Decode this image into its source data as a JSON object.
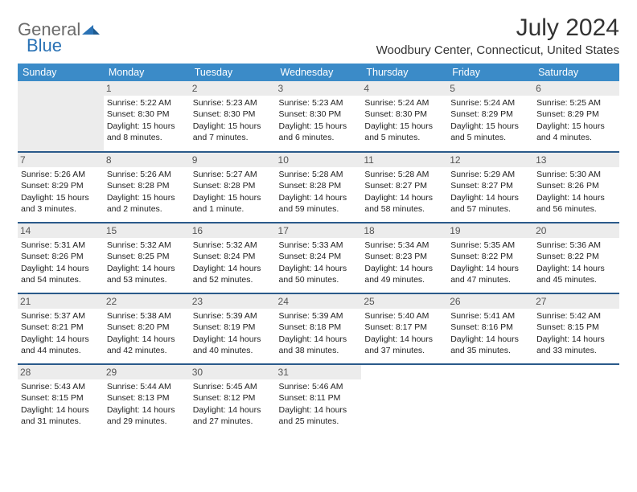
{
  "logo": {
    "text_general": "General",
    "text_blue": "Blue",
    "arrow_color": "#2a72b5"
  },
  "title": {
    "month_year": "July 2024",
    "location": "Woodbury Center, Connecticut, United States"
  },
  "colors": {
    "header_bg": "#3b8bc8",
    "header_fg": "#ffffff",
    "row_divider": "#2a5a8a",
    "daynum_bg": "#ececec",
    "body_text": "#222222"
  },
  "weekdays": [
    "Sunday",
    "Monday",
    "Tuesday",
    "Wednesday",
    "Thursday",
    "Friday",
    "Saturday"
  ],
  "weeks": [
    [
      null,
      {
        "d": "1",
        "sr": "Sunrise: 5:22 AM",
        "ss": "Sunset: 8:30 PM",
        "dl1": "Daylight: 15 hours",
        "dl2": "and 8 minutes."
      },
      {
        "d": "2",
        "sr": "Sunrise: 5:23 AM",
        "ss": "Sunset: 8:30 PM",
        "dl1": "Daylight: 15 hours",
        "dl2": "and 7 minutes."
      },
      {
        "d": "3",
        "sr": "Sunrise: 5:23 AM",
        "ss": "Sunset: 8:30 PM",
        "dl1": "Daylight: 15 hours",
        "dl2": "and 6 minutes."
      },
      {
        "d": "4",
        "sr": "Sunrise: 5:24 AM",
        "ss": "Sunset: 8:30 PM",
        "dl1": "Daylight: 15 hours",
        "dl2": "and 5 minutes."
      },
      {
        "d": "5",
        "sr": "Sunrise: 5:24 AM",
        "ss": "Sunset: 8:29 PM",
        "dl1": "Daylight: 15 hours",
        "dl2": "and 5 minutes."
      },
      {
        "d": "6",
        "sr": "Sunrise: 5:25 AM",
        "ss": "Sunset: 8:29 PM",
        "dl1": "Daylight: 15 hours",
        "dl2": "and 4 minutes."
      }
    ],
    [
      {
        "d": "7",
        "sr": "Sunrise: 5:26 AM",
        "ss": "Sunset: 8:29 PM",
        "dl1": "Daylight: 15 hours",
        "dl2": "and 3 minutes."
      },
      {
        "d": "8",
        "sr": "Sunrise: 5:26 AM",
        "ss": "Sunset: 8:28 PM",
        "dl1": "Daylight: 15 hours",
        "dl2": "and 2 minutes."
      },
      {
        "d": "9",
        "sr": "Sunrise: 5:27 AM",
        "ss": "Sunset: 8:28 PM",
        "dl1": "Daylight: 15 hours",
        "dl2": "and 1 minute."
      },
      {
        "d": "10",
        "sr": "Sunrise: 5:28 AM",
        "ss": "Sunset: 8:28 PM",
        "dl1": "Daylight: 14 hours",
        "dl2": "and 59 minutes."
      },
      {
        "d": "11",
        "sr": "Sunrise: 5:28 AM",
        "ss": "Sunset: 8:27 PM",
        "dl1": "Daylight: 14 hours",
        "dl2": "and 58 minutes."
      },
      {
        "d": "12",
        "sr": "Sunrise: 5:29 AM",
        "ss": "Sunset: 8:27 PM",
        "dl1": "Daylight: 14 hours",
        "dl2": "and 57 minutes."
      },
      {
        "d": "13",
        "sr": "Sunrise: 5:30 AM",
        "ss": "Sunset: 8:26 PM",
        "dl1": "Daylight: 14 hours",
        "dl2": "and 56 minutes."
      }
    ],
    [
      {
        "d": "14",
        "sr": "Sunrise: 5:31 AM",
        "ss": "Sunset: 8:26 PM",
        "dl1": "Daylight: 14 hours",
        "dl2": "and 54 minutes."
      },
      {
        "d": "15",
        "sr": "Sunrise: 5:32 AM",
        "ss": "Sunset: 8:25 PM",
        "dl1": "Daylight: 14 hours",
        "dl2": "and 53 minutes."
      },
      {
        "d": "16",
        "sr": "Sunrise: 5:32 AM",
        "ss": "Sunset: 8:24 PM",
        "dl1": "Daylight: 14 hours",
        "dl2": "and 52 minutes."
      },
      {
        "d": "17",
        "sr": "Sunrise: 5:33 AM",
        "ss": "Sunset: 8:24 PM",
        "dl1": "Daylight: 14 hours",
        "dl2": "and 50 minutes."
      },
      {
        "d": "18",
        "sr": "Sunrise: 5:34 AM",
        "ss": "Sunset: 8:23 PM",
        "dl1": "Daylight: 14 hours",
        "dl2": "and 49 minutes."
      },
      {
        "d": "19",
        "sr": "Sunrise: 5:35 AM",
        "ss": "Sunset: 8:22 PM",
        "dl1": "Daylight: 14 hours",
        "dl2": "and 47 minutes."
      },
      {
        "d": "20",
        "sr": "Sunrise: 5:36 AM",
        "ss": "Sunset: 8:22 PM",
        "dl1": "Daylight: 14 hours",
        "dl2": "and 45 minutes."
      }
    ],
    [
      {
        "d": "21",
        "sr": "Sunrise: 5:37 AM",
        "ss": "Sunset: 8:21 PM",
        "dl1": "Daylight: 14 hours",
        "dl2": "and 44 minutes."
      },
      {
        "d": "22",
        "sr": "Sunrise: 5:38 AM",
        "ss": "Sunset: 8:20 PM",
        "dl1": "Daylight: 14 hours",
        "dl2": "and 42 minutes."
      },
      {
        "d": "23",
        "sr": "Sunrise: 5:39 AM",
        "ss": "Sunset: 8:19 PM",
        "dl1": "Daylight: 14 hours",
        "dl2": "and 40 minutes."
      },
      {
        "d": "24",
        "sr": "Sunrise: 5:39 AM",
        "ss": "Sunset: 8:18 PM",
        "dl1": "Daylight: 14 hours",
        "dl2": "and 38 minutes."
      },
      {
        "d": "25",
        "sr": "Sunrise: 5:40 AM",
        "ss": "Sunset: 8:17 PM",
        "dl1": "Daylight: 14 hours",
        "dl2": "and 37 minutes."
      },
      {
        "d": "26",
        "sr": "Sunrise: 5:41 AM",
        "ss": "Sunset: 8:16 PM",
        "dl1": "Daylight: 14 hours",
        "dl2": "and 35 minutes."
      },
      {
        "d": "27",
        "sr": "Sunrise: 5:42 AM",
        "ss": "Sunset: 8:15 PM",
        "dl1": "Daylight: 14 hours",
        "dl2": "and 33 minutes."
      }
    ],
    [
      {
        "d": "28",
        "sr": "Sunrise: 5:43 AM",
        "ss": "Sunset: 8:15 PM",
        "dl1": "Daylight: 14 hours",
        "dl2": "and 31 minutes."
      },
      {
        "d": "29",
        "sr": "Sunrise: 5:44 AM",
        "ss": "Sunset: 8:13 PM",
        "dl1": "Daylight: 14 hours",
        "dl2": "and 29 minutes."
      },
      {
        "d": "30",
        "sr": "Sunrise: 5:45 AM",
        "ss": "Sunset: 8:12 PM",
        "dl1": "Daylight: 14 hours",
        "dl2": "and 27 minutes."
      },
      {
        "d": "31",
        "sr": "Sunrise: 5:46 AM",
        "ss": "Sunset: 8:11 PM",
        "dl1": "Daylight: 14 hours",
        "dl2": "and 25 minutes."
      },
      null,
      null,
      null
    ]
  ]
}
